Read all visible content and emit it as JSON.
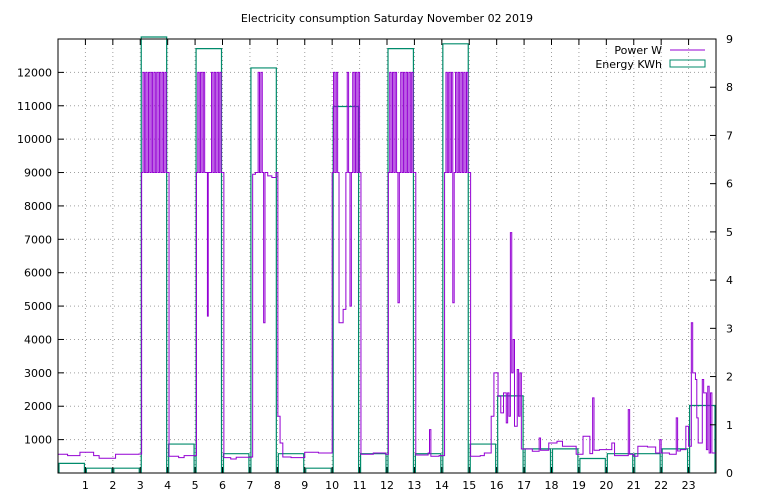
{
  "chart_data": {
    "type": "line",
    "title": "Electricity consumption Saturday November 02 2019",
    "x_ticks": [
      "1",
      "2",
      "3",
      "4",
      "5",
      "6",
      "7",
      "8",
      "9",
      "10",
      "11",
      "12",
      "13",
      "14",
      "15",
      "16",
      "17",
      "18",
      "19",
      "20",
      "21",
      "22",
      "23"
    ],
    "xlim": [
      0,
      24
    ],
    "y_left_ticks": [
      "1000",
      "2000",
      "3000",
      "4000",
      "5000",
      "6000",
      "7000",
      "8000",
      "9000",
      "10000",
      "11000",
      "12000"
    ],
    "ylim_left": [
      0,
      13000
    ],
    "y_right_ticks": [
      "0",
      "1",
      "2",
      "3",
      "4",
      "5",
      "6",
      "7",
      "8",
      "9"
    ],
    "ylim_right": [
      0,
      9
    ],
    "grid": true,
    "legend_position": "top-right",
    "series": [
      {
        "name": "Power W",
        "axis": "left",
        "color": "#9400d3",
        "step": "post",
        "points": [
          [
            0,
            560
          ],
          [
            0.35,
            520
          ],
          [
            0.8,
            620
          ],
          [
            1.3,
            520
          ],
          [
            1.5,
            440
          ],
          [
            2.1,
            560
          ],
          [
            2.95,
            570
          ],
          [
            3.05,
            9000
          ],
          [
            3.1,
            12000
          ],
          [
            3.15,
            9000
          ],
          [
            3.2,
            12000
          ],
          [
            3.25,
            9000
          ],
          [
            3.3,
            12000
          ],
          [
            3.35,
            9000
          ],
          [
            3.4,
            12000
          ],
          [
            3.45,
            9000
          ],
          [
            3.5,
            12000
          ],
          [
            3.55,
            9000
          ],
          [
            3.6,
            12000
          ],
          [
            3.65,
            9000
          ],
          [
            3.7,
            12000
          ],
          [
            3.75,
            9000
          ],
          [
            3.8,
            12000
          ],
          [
            3.85,
            9000
          ],
          [
            3.9,
            12000
          ],
          [
            3.95,
            9000
          ],
          [
            4.05,
            500
          ],
          [
            4.4,
            460
          ],
          [
            4.6,
            520
          ],
          [
            4.95,
            520
          ],
          [
            5.05,
            9000
          ],
          [
            5.1,
            12000
          ],
          [
            5.15,
            9000
          ],
          [
            5.2,
            12000
          ],
          [
            5.25,
            9000
          ],
          [
            5.3,
            12000
          ],
          [
            5.35,
            9000
          ],
          [
            5.45,
            4700
          ],
          [
            5.48,
            9000
          ],
          [
            5.55,
            9000
          ],
          [
            5.6,
            12000
          ],
          [
            5.65,
            9000
          ],
          [
            5.7,
            12000
          ],
          [
            5.75,
            9000
          ],
          [
            5.8,
            12000
          ],
          [
            5.85,
            9000
          ],
          [
            5.9,
            12000
          ],
          [
            5.95,
            9000
          ],
          [
            6.05,
            460
          ],
          [
            6.3,
            420
          ],
          [
            6.5,
            470
          ],
          [
            7.05,
            480
          ],
          [
            7.1,
            8950
          ],
          [
            7.2,
            9000
          ],
          [
            7.3,
            12000
          ],
          [
            7.35,
            9000
          ],
          [
            7.4,
            12000
          ],
          [
            7.45,
            9000
          ],
          [
            7.5,
            4500
          ],
          [
            7.55,
            9000
          ],
          [
            7.65,
            8900
          ],
          [
            7.8,
            8850
          ],
          [
            7.95,
            9000
          ],
          [
            8.02,
            1700
          ],
          [
            8.1,
            900
          ],
          [
            8.2,
            480
          ],
          [
            8.5,
            460
          ],
          [
            9.0,
            620
          ],
          [
            9.5,
            600
          ],
          [
            9.95,
            600
          ],
          [
            10.0,
            9000
          ],
          [
            10.05,
            12000
          ],
          [
            10.1,
            9000
          ],
          [
            10.15,
            12000
          ],
          [
            10.2,
            9000
          ],
          [
            10.25,
            4500
          ],
          [
            10.4,
            4900
          ],
          [
            10.5,
            9000
          ],
          [
            10.55,
            12000
          ],
          [
            10.6,
            9000
          ],
          [
            10.65,
            5000
          ],
          [
            10.7,
            9000
          ],
          [
            10.75,
            12000
          ],
          [
            10.8,
            9000
          ],
          [
            10.85,
            12000
          ],
          [
            10.9,
            9000
          ],
          [
            10.95,
            12000
          ],
          [
            11.0,
            9000
          ],
          [
            11.05,
            560
          ],
          [
            11.5,
            600
          ],
          [
            11.95,
            560
          ],
          [
            12.05,
            9000
          ],
          [
            12.1,
            12000
          ],
          [
            12.15,
            9000
          ],
          [
            12.2,
            12000
          ],
          [
            12.25,
            9000
          ],
          [
            12.3,
            12000
          ],
          [
            12.35,
            9000
          ],
          [
            12.4,
            5100
          ],
          [
            12.45,
            9000
          ],
          [
            12.5,
            12000
          ],
          [
            12.55,
            9000
          ],
          [
            12.6,
            12000
          ],
          [
            12.65,
            9000
          ],
          [
            12.7,
            12000
          ],
          [
            12.75,
            9000
          ],
          [
            12.8,
            12000
          ],
          [
            12.85,
            9000
          ],
          [
            12.9,
            12000
          ],
          [
            12.95,
            9000
          ],
          [
            13.05,
            540
          ],
          [
            13.5,
            600
          ],
          [
            13.55,
            1300
          ],
          [
            13.6,
            500
          ],
          [
            13.9,
            520
          ],
          [
            14.1,
            9000
          ],
          [
            14.15,
            12000
          ],
          [
            14.2,
            9000
          ],
          [
            14.25,
            12000
          ],
          [
            14.3,
            9000
          ],
          [
            14.35,
            12000
          ],
          [
            14.4,
            5100
          ],
          [
            14.45,
            9000
          ],
          [
            14.5,
            12000
          ],
          [
            14.55,
            9000
          ],
          [
            14.6,
            12000
          ],
          [
            14.65,
            9000
          ],
          [
            14.7,
            12000
          ],
          [
            14.75,
            9000
          ],
          [
            14.8,
            12000
          ],
          [
            14.85,
            9000
          ],
          [
            14.9,
            12000
          ],
          [
            14.95,
            9000
          ],
          [
            15.05,
            500
          ],
          [
            15.4,
            520
          ],
          [
            15.55,
            600
          ],
          [
            15.8,
            1700
          ],
          [
            15.9,
            3000
          ],
          [
            16.05,
            2300
          ],
          [
            16.15,
            1800
          ],
          [
            16.25,
            2400
          ],
          [
            16.35,
            1500
          ],
          [
            16.4,
            2400
          ],
          [
            16.45,
            1700
          ],
          [
            16.5,
            7200
          ],
          [
            16.55,
            3000
          ],
          [
            16.6,
            4000
          ],
          [
            16.65,
            1400
          ],
          [
            16.75,
            3100
          ],
          [
            16.8,
            1700
          ],
          [
            16.85,
            3000
          ],
          [
            16.9,
            720
          ],
          [
            17.3,
            650
          ],
          [
            17.55,
            1050
          ],
          [
            17.6,
            680
          ],
          [
            17.9,
            900
          ],
          [
            18.2,
            950
          ],
          [
            18.4,
            800
          ],
          [
            18.9,
            560
          ],
          [
            19.15,
            1100
          ],
          [
            19.4,
            580
          ],
          [
            19.5,
            2250
          ],
          [
            19.55,
            680
          ],
          [
            19.75,
            700
          ],
          [
            20.2,
            900
          ],
          [
            20.3,
            520
          ],
          [
            20.8,
            1900
          ],
          [
            20.85,
            560
          ],
          [
            21.0,
            500
          ],
          [
            21.15,
            800
          ],
          [
            21.5,
            780
          ],
          [
            21.8,
            600
          ],
          [
            21.95,
            1000
          ],
          [
            22.0,
            600
          ],
          [
            22.3,
            560
          ],
          [
            22.55,
            1650
          ],
          [
            22.6,
            660
          ],
          [
            22.7,
            700
          ],
          [
            22.9,
            1400
          ],
          [
            23.0,
            800
          ],
          [
            23.1,
            4500
          ],
          [
            23.15,
            3000
          ],
          [
            23.25,
            2800
          ],
          [
            23.3,
            1650
          ],
          [
            23.35,
            900
          ],
          [
            23.5,
            2800
          ],
          [
            23.55,
            2400
          ],
          [
            23.65,
            700
          ],
          [
            23.7,
            2600
          ],
          [
            23.75,
            600
          ],
          [
            23.8,
            2400
          ],
          [
            23.85,
            600
          ],
          [
            23.95,
            600
          ]
        ]
      },
      {
        "name": "Energy KWh",
        "axis": "right",
        "color": "#008b6b",
        "type": "step-bars",
        "values": [
          0.2,
          0.1,
          0.1,
          9.2,
          0.6,
          8.8,
          0.4,
          8.4,
          0.4,
          0.1,
          7.6,
          0.4,
          8.8,
          0.4,
          8.9,
          0.6,
          1.6,
          0.5,
          0.5,
          0.3,
          0.4,
          0.4,
          0.5,
          1.4
        ]
      }
    ]
  }
}
